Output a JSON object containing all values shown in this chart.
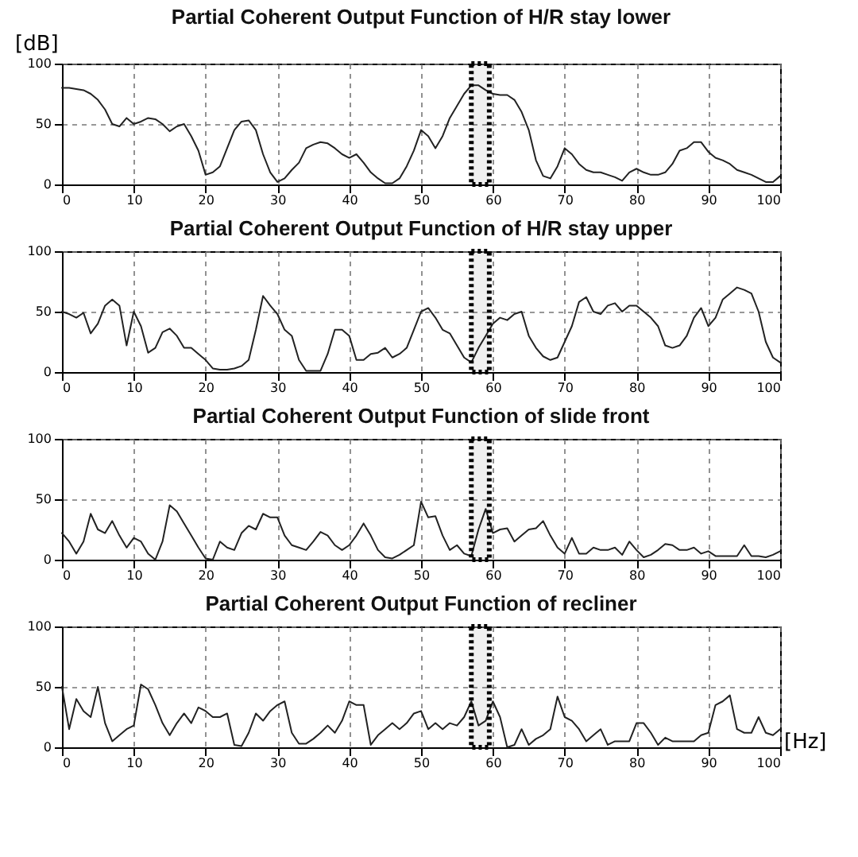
{
  "chart_data": [
    {
      "type": "line",
      "title": "Partial Coherent Output Function  of H/R stay lower",
      "ylabel": "[dB]",
      "x": [
        0,
        1,
        2,
        3,
        4,
        5,
        6,
        7,
        8,
        9,
        10,
        11,
        12,
        13,
        14,
        15,
        16,
        17,
        18,
        19,
        20,
        21,
        22,
        23,
        24,
        25,
        26,
        27,
        28,
        29,
        30,
        31,
        32,
        33,
        34,
        35,
        36,
        37,
        38,
        39,
        40,
        41,
        42,
        43,
        44,
        45,
        46,
        47,
        48,
        49,
        50,
        51,
        52,
        53,
        54,
        55,
        56,
        57,
        58,
        59,
        60,
        61,
        62,
        63,
        64,
        65,
        66,
        67,
        68,
        69,
        70,
        71,
        72,
        73,
        74,
        75,
        76,
        77,
        78,
        79,
        80,
        81,
        82,
        83,
        84,
        85,
        86,
        87,
        88,
        89,
        90,
        91,
        92,
        93,
        94,
        95,
        96,
        97,
        98,
        99,
        100
      ],
      "series": [
        {
          "color": "#222222",
          "values": [
            80,
            80,
            79,
            78,
            75,
            70,
            62,
            50,
            48,
            55,
            50,
            52,
            55,
            54,
            50,
            44,
            48,
            50,
            40,
            28,
            8,
            10,
            15,
            30,
            45,
            52,
            53,
            45,
            25,
            10,
            2,
            5,
            12,
            18,
            30,
            33,
            35,
            34,
            30,
            25,
            22,
            25,
            18,
            10,
            5,
            1,
            1,
            5,
            15,
            28,
            45,
            40,
            30,
            40,
            55,
            65,
            75,
            82,
            82,
            78,
            75,
            74,
            74,
            70,
            60,
            45,
            20,
            7,
            5,
            15,
            30,
            25,
            17,
            12,
            10,
            10,
            8,
            6,
            3,
            10,
            13,
            10,
            8,
            8,
            10,
            17,
            28,
            30,
            35,
            35,
            27,
            22,
            20,
            17,
            12,
            10,
            8,
            5,
            2,
            2,
            7
          ]
        }
      ],
      "xlim": [
        0,
        100
      ],
      "xticks": [
        0,
        10,
        20,
        30,
        40,
        50,
        60,
        70,
        80,
        90,
        100
      ],
      "ylim": [
        0,
        100
      ],
      "yticks": [
        0,
        50,
        100
      ],
      "grid": true,
      "bands": [
        {
          "axis": "x",
          "from": 57,
          "to": 59.5,
          "color": "#000000"
        }
      ]
    },
    {
      "type": "line",
      "title": "Partial Coherent Output Function  of H/R stay upper",
      "x": [
        0,
        1,
        2,
        3,
        4,
        5,
        6,
        7,
        8,
        9,
        10,
        11,
        12,
        13,
        14,
        15,
        16,
        17,
        18,
        19,
        20,
        21,
        22,
        23,
        24,
        25,
        26,
        27,
        28,
        29,
        30,
        31,
        32,
        33,
        34,
        35,
        36,
        37,
        38,
        39,
        40,
        41,
        42,
        43,
        44,
        45,
        46,
        47,
        48,
        49,
        50,
        51,
        52,
        53,
        54,
        55,
        56,
        57,
        58,
        59,
        60,
        61,
        62,
        63,
        64,
        65,
        66,
        67,
        68,
        69,
        70,
        71,
        72,
        73,
        74,
        75,
        76,
        77,
        78,
        79,
        80,
        81,
        82,
        83,
        84,
        85,
        86,
        87,
        88,
        89,
        90,
        91,
        92,
        93,
        94,
        95,
        96,
        97,
        98,
        99,
        100
      ],
      "series": [
        {
          "color": "#222222",
          "values": [
            50,
            48,
            45,
            49,
            32,
            40,
            55,
            60,
            55,
            22,
            50,
            38,
            16,
            20,
            33,
            36,
            30,
            20,
            20,
            15,
            10,
            3,
            2,
            2,
            3,
            5,
            10,
            35,
            63,
            55,
            48,
            35,
            30,
            10,
            1,
            1,
            1,
            15,
            35,
            35,
            30,
            10,
            10,
            15,
            16,
            20,
            12,
            15,
            20,
            35,
            50,
            53,
            45,
            35,
            32,
            22,
            12,
            8,
            20,
            30,
            40,
            45,
            43,
            48,
            50,
            30,
            20,
            13,
            10,
            12,
            25,
            38,
            58,
            62,
            50,
            48,
            55,
            57,
            50,
            55,
            55,
            50,
            45,
            38,
            22,
            20,
            22,
            30,
            45,
            53,
            38,
            45,
            60,
            65,
            70,
            68,
            65,
            50,
            25,
            12,
            8
          ]
        }
      ],
      "xlim": [
        0,
        100
      ],
      "xticks": [
        0,
        10,
        20,
        30,
        40,
        50,
        60,
        70,
        80,
        90,
        100
      ],
      "ylim": [
        0,
        100
      ],
      "yticks": [
        0,
        50,
        100
      ],
      "grid": true,
      "bands": [
        {
          "axis": "x",
          "from": 57,
          "to": 59.5,
          "color": "#000000"
        }
      ]
    },
    {
      "type": "line",
      "title": "Partial Coherent Output Function  of slide front",
      "x": [
        0,
        1,
        2,
        3,
        4,
        5,
        6,
        7,
        8,
        9,
        10,
        11,
        12,
        13,
        14,
        15,
        16,
        17,
        18,
        19,
        20,
        21,
        22,
        23,
        24,
        25,
        26,
        27,
        28,
        29,
        30,
        31,
        32,
        33,
        34,
        35,
        36,
        37,
        38,
        39,
        40,
        41,
        42,
        43,
        44,
        45,
        46,
        47,
        48,
        49,
        50,
        51,
        52,
        53,
        54,
        55,
        56,
        57,
        58,
        59,
        60,
        61,
        62,
        63,
        64,
        65,
        66,
        67,
        68,
        69,
        70,
        71,
        72,
        73,
        74,
        75,
        76,
        77,
        78,
        79,
        80,
        81,
        82,
        83,
        84,
        85,
        86,
        87,
        88,
        89,
        90,
        91,
        92,
        93,
        94,
        95,
        96,
        97,
        98,
        99,
        100
      ],
      "series": [
        {
          "color": "#222222",
          "values": [
            22,
            15,
            5,
            15,
            38,
            25,
            22,
            32,
            20,
            10,
            18,
            15,
            5,
            0,
            15,
            45,
            40,
            30,
            20,
            10,
            1,
            0,
            15,
            10,
            8,
            22,
            28,
            25,
            38,
            35,
            35,
            20,
            12,
            10,
            8,
            15,
            23,
            20,
            12,
            8,
            12,
            20,
            30,
            20,
            8,
            2,
            1,
            4,
            8,
            12,
            48,
            35,
            36,
            20,
            8,
            12,
            5,
            3,
            25,
            42,
            22,
            25,
            26,
            15,
            20,
            25,
            26,
            32,
            20,
            10,
            5,
            18,
            5,
            5,
            10,
            8,
            8,
            10,
            4,
            15,
            8,
            2,
            4,
            8,
            13,
            12,
            8,
            8,
            10,
            5,
            7,
            3,
            3,
            3,
            3,
            12,
            3,
            3,
            2,
            4,
            7
          ]
        }
      ],
      "xlim": [
        0,
        100
      ],
      "xticks": [
        0,
        10,
        20,
        30,
        40,
        50,
        60,
        70,
        80,
        90,
        100
      ],
      "ylim": [
        0,
        100
      ],
      "yticks": [
        0,
        50,
        100
      ],
      "grid": true,
      "bands": [
        {
          "axis": "x",
          "from": 57,
          "to": 59.5,
          "color": "#000000"
        }
      ]
    },
    {
      "type": "line",
      "title": "Partial Coherent Output Function  of recliner",
      "xlabel": "[Hz]",
      "x": [
        0,
        1,
        2,
        3,
        4,
        5,
        6,
        7,
        8,
        9,
        10,
        11,
        12,
        13,
        14,
        15,
        16,
        17,
        18,
        19,
        20,
        21,
        22,
        23,
        24,
        25,
        26,
        27,
        28,
        29,
        30,
        31,
        32,
        33,
        34,
        35,
        36,
        37,
        38,
        39,
        40,
        41,
        42,
        43,
        44,
        45,
        46,
        47,
        48,
        49,
        50,
        51,
        52,
        53,
        54,
        55,
        56,
        57,
        58,
        59,
        60,
        61,
        62,
        63,
        64,
        65,
        66,
        67,
        68,
        69,
        70,
        71,
        72,
        73,
        74,
        75,
        76,
        77,
        78,
        79,
        80,
        81,
        82,
        83,
        84,
        85,
        86,
        87,
        88,
        89,
        90,
        91,
        92,
        93,
        94,
        95,
        96,
        97,
        98,
        99,
        100
      ],
      "series": [
        {
          "color": "#222222",
          "values": [
            50,
            15,
            40,
            30,
            25,
            50,
            20,
            5,
            10,
            15,
            18,
            52,
            48,
            35,
            20,
            10,
            20,
            28,
            20,
            33,
            30,
            25,
            25,
            28,
            2,
            1,
            12,
            28,
            22,
            30,
            35,
            38,
            12,
            3,
            3,
            7,
            12,
            18,
            12,
            22,
            38,
            35,
            35,
            2,
            10,
            15,
            20,
            15,
            20,
            28,
            30,
            15,
            20,
            15,
            20,
            18,
            25,
            38,
            18,
            22,
            38,
            25,
            0,
            2,
            15,
            2,
            7,
            10,
            15,
            42,
            25,
            22,
            15,
            5,
            10,
            15,
            2,
            5,
            5,
            5,
            20,
            20,
            12,
            2,
            8,
            5,
            5,
            5,
            5,
            10,
            12,
            35,
            38,
            43,
            15,
            12,
            12,
            25,
            12,
            10,
            15
          ]
        }
      ],
      "xlim": [
        0,
        100
      ],
      "xticks": [
        0,
        10,
        20,
        30,
        40,
        50,
        60,
        70,
        80,
        90,
        100
      ],
      "ylim": [
        0,
        100
      ],
      "yticks": [
        0,
        50,
        100
      ],
      "grid": true,
      "bands": [
        {
          "axis": "x",
          "from": 57,
          "to": 59.5,
          "color": "#000000"
        }
      ]
    }
  ]
}
